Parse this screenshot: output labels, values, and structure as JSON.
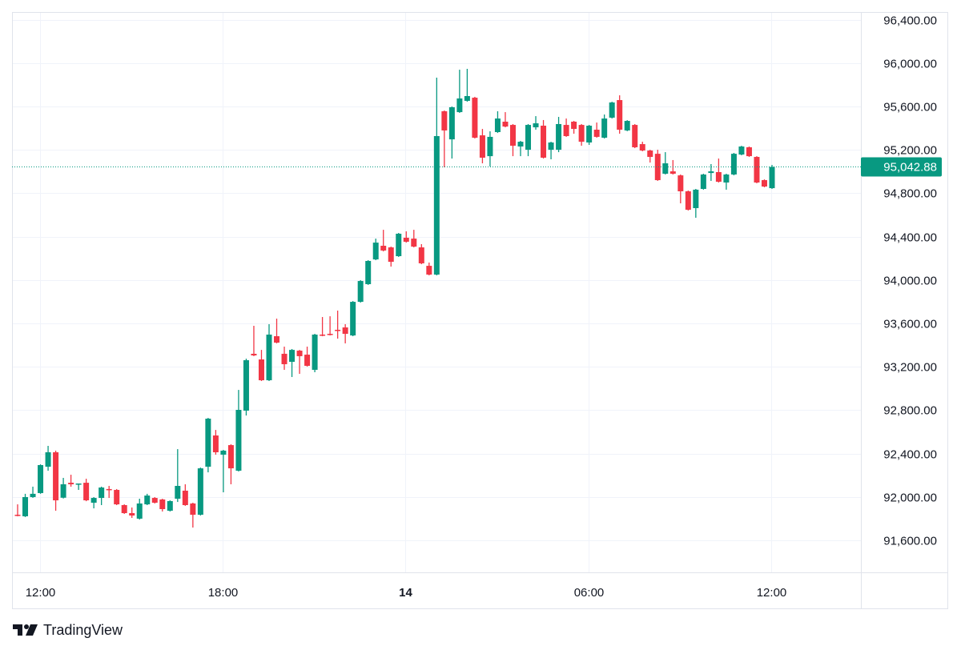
{
  "chart_data": {
    "type": "candlestick",
    "ylim": [
      91305,
      96471
    ],
    "y_ticks": [
      96400,
      96000,
      95600,
      95200,
      94800,
      94400,
      94000,
      93600,
      93200,
      92800,
      92400,
      92000,
      91600
    ],
    "y_tick_labels": [
      "96,400.00",
      "96,000.00",
      "95,600.00",
      "95,200.00",
      "94,800.00",
      "94,400.00",
      "94,000.00",
      "93,600.00",
      "93,200.00",
      "92,800.00",
      "92,400.00",
      "92,000.00",
      "91,600.00"
    ],
    "x_ticks": [
      {
        "label": "12:00",
        "at": "13 12:00",
        "bold": false
      },
      {
        "label": "18:00",
        "at": "13 18:00",
        "bold": false
      },
      {
        "label": "14",
        "at": "14 00:00",
        "bold": true
      },
      {
        "label": "06:00",
        "at": "14 06:00",
        "bold": false
      },
      {
        "label": "12:00",
        "at": "14 12:00",
        "bold": false
      }
    ],
    "grid": true,
    "last_price": 95042.88,
    "last_price_label": "95,042.88",
    "colors": {
      "up": "#089981",
      "down": "#f23645",
      "grid": "#f0f3fa",
      "border": "#e0e3eb"
    },
    "candles_format": [
      "time",
      "open",
      "high",
      "low",
      "close"
    ],
    "candles": [
      [
        "13 11:15",
        91836,
        91932,
        91822,
        91829
      ],
      [
        "13 11:30",
        91822,
        92029,
        91815,
        91999
      ],
      [
        "13 11:45",
        91999,
        92095,
        91992,
        92029
      ],
      [
        "13 12:00",
        92036,
        92301,
        92029,
        92294
      ],
      [
        "13 12:15",
        92279,
        92471,
        92242,
        92412
      ],
      [
        "13 12:30",
        92412,
        92427,
        91873,
        91969
      ],
      [
        "13 12:45",
        91993,
        92176,
        91986,
        92117
      ],
      [
        "13 13:00",
        92131,
        92205,
        92095,
        92117
      ],
      [
        "13 13:15",
        92117,
        92124,
        92065,
        92124
      ],
      [
        "13 13:30",
        92131,
        92168,
        91961,
        91969
      ],
      [
        "13 13:45",
        91947,
        91999,
        91895,
        91991
      ],
      [
        "13 14:00",
        91991,
        92095,
        91925,
        92087
      ],
      [
        "13 14:15",
        92073,
        92102,
        91991,
        92065
      ],
      [
        "13 14:30",
        92065,
        92073,
        91925,
        91932
      ],
      [
        "13 14:45",
        91925,
        91932,
        91844,
        91851
      ],
      [
        "13 15:00",
        91851,
        91903,
        91807,
        91829
      ],
      [
        "13 15:15",
        91800,
        91984,
        91792,
        91940
      ],
      [
        "13 15:30",
        91932,
        92029,
        91925,
        92013
      ],
      [
        "13 15:45",
        91991,
        91999,
        91940,
        91947
      ],
      [
        "13 16:00",
        91977,
        91984,
        91866,
        91888
      ],
      [
        "13 16:15",
        91873,
        91969,
        91866,
        91962
      ],
      [
        "13 16:30",
        91984,
        92441,
        91954,
        92102
      ],
      [
        "13 16:45",
        92058,
        92117,
        91918,
        91925
      ],
      [
        "13 17:00",
        91940,
        91947,
        91718,
        91836
      ],
      [
        "13 17:15",
        91836,
        92271,
        91829,
        92264
      ],
      [
        "13 17:30",
        92279,
        92729,
        92227,
        92722
      ],
      [
        "13 17:45",
        92567,
        92618,
        92390,
        92412
      ],
      [
        "13 18:00",
        92390,
        92434,
        92043,
        92427
      ],
      [
        "13 18:15",
        92478,
        92486,
        92117,
        92264
      ],
      [
        "13 18:30",
        92242,
        92987,
        92235,
        92803
      ],
      [
        "13 18:45",
        92796,
        93275,
        92751,
        93261
      ],
      [
        "13 19:00",
        93320,
        93578,
        93298,
        93305
      ],
      [
        "13 19:15",
        93268,
        93356,
        93069,
        93076
      ],
      [
        "13 19:30",
        93076,
        93593,
        93069,
        93497
      ],
      [
        "13 19:45",
        93482,
        93644,
        93416,
        93423
      ],
      [
        "13 20:00",
        93320,
        93386,
        93172,
        93224
      ],
      [
        "13 20:15",
        93246,
        93364,
        93106,
        93356
      ],
      [
        "13 20:30",
        93349,
        93356,
        93135,
        93298
      ],
      [
        "13 20:45",
        93312,
        93386,
        93202,
        93209
      ],
      [
        "13 21:00",
        93172,
        93504,
        93150,
        93497
      ],
      [
        "13 21:15",
        93497,
        93659,
        93482,
        93489
      ],
      [
        "13 21:30",
        93504,
        93666,
        93489,
        93497
      ],
      [
        "13 21:45",
        93541,
        93718,
        93460,
        93534
      ],
      [
        "13 22:00",
        93563,
        93593,
        93416,
        93504
      ],
      [
        "13 22:15",
        93489,
        93806,
        93482,
        93799
      ],
      [
        "13 22:30",
        93799,
        93999,
        93792,
        93991
      ],
      [
        "13 22:45",
        93962,
        94183,
        93955,
        94176
      ],
      [
        "13 23:00",
        94190,
        94382,
        94183,
        94345
      ],
      [
        "13 23:15",
        94316,
        94463,
        94264,
        94272
      ],
      [
        "13 23:30",
        94301,
        94308,
        94124,
        94168
      ],
      [
        "13 23:45",
        94220,
        94434,
        94213,
        94427
      ],
      [
        "14 00:00",
        94390,
        94449,
        94345,
        94353
      ],
      [
        "14 00:15",
        94382,
        94463,
        94301,
        94308
      ],
      [
        "14 00:30",
        94301,
        94331,
        94146,
        94154
      ],
      [
        "14 00:45",
        94131,
        94161,
        94043,
        94050
      ],
      [
        "14 01:00",
        94050,
        95866,
        94043,
        95327
      ],
      [
        "14 01:15",
        95556,
        95563,
        95039,
        95379
      ],
      [
        "14 01:30",
        95297,
        95600,
        95120,
        95593
      ],
      [
        "14 01:45",
        95548,
        95939,
        95541,
        95674
      ],
      [
        "14 02:00",
        95652,
        95947,
        95644,
        95696
      ],
      [
        "14 02:15",
        95681,
        95689,
        95305,
        95312
      ],
      [
        "14 02:30",
        95334,
        95393,
        95076,
        95128
      ],
      [
        "14 02:45",
        95142,
        95371,
        95047,
        95320
      ],
      [
        "14 03:00",
        95364,
        95556,
        95356,
        95489
      ],
      [
        "14 03:15",
        95460,
        95548,
        95408,
        95415
      ],
      [
        "14 03:30",
        95430,
        95438,
        95142,
        95238
      ],
      [
        "14 03:45",
        95231,
        95283,
        95142,
        95275
      ],
      [
        "14 04:00",
        95201,
        95438,
        95142,
        95430
      ],
      [
        "14 04:15",
        95408,
        95511,
        95386,
        95445
      ],
      [
        "14 04:30",
        95423,
        95475,
        95120,
        95128
      ],
      [
        "14 04:45",
        95201,
        95275,
        95113,
        95268
      ],
      [
        "14 05:00",
        95201,
        95504,
        95179,
        95438
      ],
      [
        "14 05:15",
        95430,
        95489,
        95320,
        95327
      ],
      [
        "14 05:30",
        95460,
        95467,
        95349,
        95393
      ],
      [
        "14 05:45",
        95430,
        95438,
        95238,
        95275
      ],
      [
        "14 06:00",
        95268,
        95430,
        95246,
        95423
      ],
      [
        "14 06:15",
        95386,
        95452,
        95312,
        95320
      ],
      [
        "14 06:30",
        95312,
        95526,
        95305,
        95489
      ],
      [
        "14 06:45",
        95497,
        95644,
        95489,
        95637
      ],
      [
        "14 07:00",
        95659,
        95703,
        95349,
        95386
      ],
      [
        "14 07:15",
        95379,
        95474,
        95372,
        95467
      ],
      [
        "14 07:30",
        95430,
        95438,
        95216,
        95224
      ],
      [
        "14 07:45",
        95253,
        95275,
        95187,
        95194
      ],
      [
        "14 08:00",
        95194,
        95201,
        95083,
        95135
      ],
      [
        "14 08:15",
        95164,
        95201,
        94914,
        94921
      ],
      [
        "14 08:30",
        94980,
        95179,
        94973,
        95076
      ],
      [
        "14 08:45",
        95002,
        95106,
        94973,
        94980
      ],
      [
        "14 09:00",
        94965,
        94973,
        94707,
        94818
      ],
      [
        "14 09:15",
        94818,
        94825,
        94641,
        94648
      ],
      [
        "14 09:30",
        94663,
        94840,
        94574,
        94833
      ],
      [
        "14 09:45",
        94840,
        94980,
        94833,
        94973
      ],
      [
        "14 10:00",
        94987,
        95069,
        94914,
        95002
      ],
      [
        "14 10:15",
        94995,
        95120,
        94899,
        94906
      ],
      [
        "14 10:30",
        94899,
        94980,
        94833,
        94973
      ],
      [
        "14 10:45",
        94973,
        95172,
        94965,
        95164
      ],
      [
        "14 11:00",
        95157,
        95238,
        95150,
        95231
      ],
      [
        "14 11:15",
        95224,
        95231,
        95135,
        95142
      ],
      [
        "14 11:30",
        95135,
        95142,
        94892,
        94899
      ],
      [
        "14 11:45",
        94921,
        94928,
        94855,
        94862
      ],
      [
        "14 12:00",
        94847,
        95061,
        94840,
        95042.88
      ]
    ]
  },
  "footer": {
    "brand": "TradingView",
    "logo_icon": "tradingview-logo"
  }
}
